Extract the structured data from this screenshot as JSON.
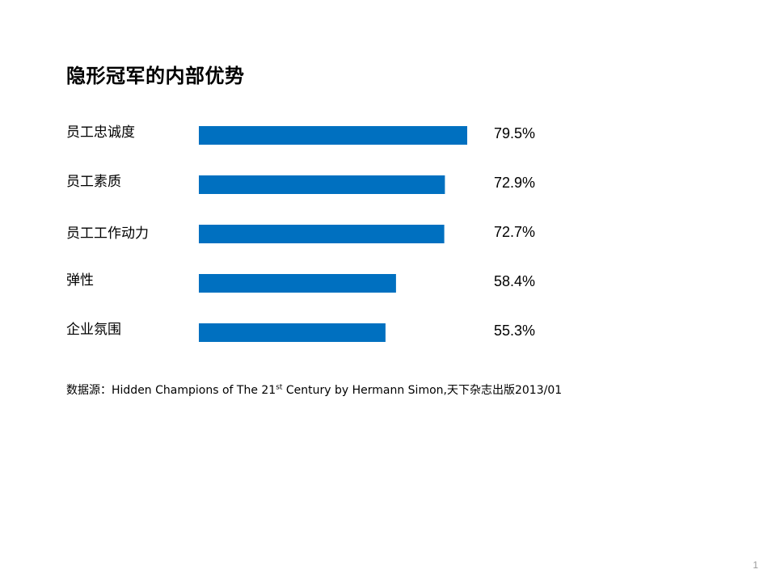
{
  "chart_data": {
    "type": "bar",
    "orientation": "horizontal",
    "title": "隐形冠军的内部优势",
    "categories": [
      "员工忠诚度",
      "员工素质",
      "员工工作动力",
      "弹性",
      "企业氛围"
    ],
    "values": [
      79.5,
      72.9,
      72.7,
      58.4,
      55.3
    ],
    "value_labels": [
      "79.5%",
      "72.9%",
      "72.7%",
      "58.4%",
      "55.3%"
    ],
    "unit": "%",
    "xlim": [
      0,
      100
    ],
    "grid": false,
    "legend": "none",
    "bar_color": "#0070C0"
  },
  "source": {
    "prefix": "数据源：Hidden Champions of The 21",
    "superscript": "st",
    "suffix": " Century by Hermann Simon,天下杂志出版2013/01"
  },
  "page_number": "1"
}
